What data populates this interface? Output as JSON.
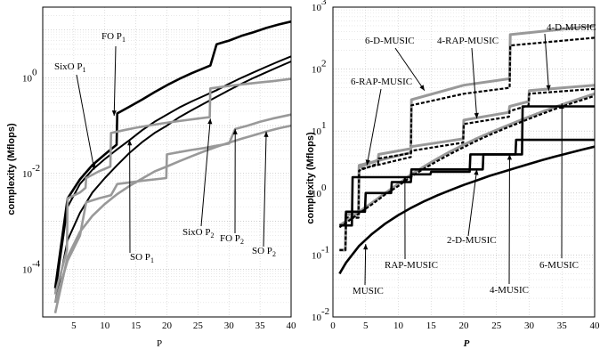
{
  "chart_data": [
    {
      "type": "line",
      "xlabel": "P",
      "ylabel": "complexity (Mflops)",
      "y_scale": "log",
      "xlim": [
        0,
        40
      ],
      "ylim": [
        1e-05,
        30
      ],
      "x_ticks": [
        "5",
        "10",
        "15",
        "20",
        "25",
        "30",
        "35",
        "40"
      ],
      "y_ticks": [
        {
          "base": "10",
          "exp": "0",
          "value": 1
        },
        {
          "base": "10",
          "exp": "-2",
          "value": 0.01
        },
        {
          "base": "10",
          "exp": "-4",
          "value": 0.0001
        }
      ],
      "grid": true,
      "annotations": [
        {
          "main": "FO P",
          "sub": "1",
          "target": "FO P1"
        },
        {
          "main": "SixO P",
          "sub": "1",
          "target": "SixO P1"
        },
        {
          "main": "SO P",
          "sub": "1",
          "target": "SO P1"
        },
        {
          "main": "SixO P",
          "sub": "2",
          "target": "SixO P2"
        },
        {
          "main": "FO P",
          "sub": "2",
          "target": "FO P2"
        },
        {
          "main": "SO P",
          "sub": "2",
          "target": "SO P2"
        }
      ],
      "series": [
        {
          "name": "FO P1",
          "color": "#000000",
          "width": 2.6,
          "x": [
            2,
            4,
            6,
            8,
            10,
            11.9,
            12,
            14,
            16,
            18,
            20,
            22,
            24,
            26,
            27,
            28,
            30,
            32,
            34,
            36,
            38,
            40
          ],
          "y": [
            4e-05,
            0.003,
            0.0075,
            0.015,
            0.025,
            0.04,
            0.18,
            0.25,
            0.35,
            0.5,
            0.7,
            0.95,
            1.25,
            1.6,
            1.8,
            5,
            6,
            7.5,
            9,
            11,
            13,
            15
          ]
        },
        {
          "name": "SixO P1",
          "color": "#000000",
          "width": 2.0,
          "x": [
            2,
            4,
            6,
            8,
            10,
            12,
            14,
            16,
            18,
            20,
            22,
            24,
            26,
            28,
            30,
            32,
            34,
            36,
            38,
            40
          ],
          "y": [
            3e-05,
            0.002,
            0.006,
            0.012,
            0.02,
            0.032,
            0.05,
            0.08,
            0.12,
            0.17,
            0.24,
            0.32,
            0.42,
            0.55,
            0.75,
            1.0,
            1.3,
            1.7,
            2.2,
            2.8
          ]
        },
        {
          "name": "SO P1",
          "color": "#000000",
          "width": 2.0,
          "x": [
            2,
            4,
            6,
            8,
            10,
            12,
            14,
            16,
            18,
            20,
            22,
            24,
            26,
            28,
            30,
            32,
            34,
            36,
            38,
            40
          ],
          "y": [
            2e-05,
            0.0004,
            0.0015,
            0.004,
            0.008,
            0.015,
            0.027,
            0.045,
            0.07,
            0.1,
            0.15,
            0.21,
            0.29,
            0.4,
            0.55,
            0.75,
            1.0,
            1.3,
            1.7,
            2.2
          ]
        },
        {
          "name": "SixO P2",
          "color": "#999999",
          "width": 2.6,
          "x": [
            2,
            3.9,
            4,
            6,
            6.9,
            7,
            9,
            10.9,
            11,
            13,
            15,
            17,
            19,
            21,
            23,
            25,
            26.9,
            27,
            29,
            31,
            33,
            35,
            37,
            40
          ],
          "y": [
            3e-05,
            0.00025,
            0.003,
            0.004,
            0.005,
            0.008,
            0.011,
            0.014,
            0.07,
            0.08,
            0.09,
            0.1,
            0.11,
            0.12,
            0.13,
            0.14,
            0.15,
            0.6,
            0.65,
            0.7,
            0.75,
            0.8,
            0.85,
            0.95
          ]
        },
        {
          "name": "FO P2",
          "color": "#999999",
          "width": 2.6,
          "x": [
            2,
            4,
            6,
            7,
            9,
            11,
            12,
            14,
            16,
            18,
            19.9,
            20,
            22,
            24,
            26,
            28,
            30,
            31,
            33,
            35,
            37,
            40
          ],
          "y": [
            2e-05,
            0.00015,
            0.0005,
            0.0025,
            0.003,
            0.0035,
            0.006,
            0.0065,
            0.007,
            0.0075,
            0.008,
            0.025,
            0.028,
            0.031,
            0.034,
            0.038,
            0.042,
            0.085,
            0.1,
            0.12,
            0.14,
            0.17
          ]
        },
        {
          "name": "SO P2",
          "color": "#999999",
          "width": 2.6,
          "x": [
            2,
            4,
            6,
            8,
            10,
            12,
            14,
            16,
            18,
            20,
            22,
            24,
            26,
            28,
            30,
            32,
            34,
            36,
            38,
            40
          ],
          "y": [
            1.2e-05,
            0.00018,
            0.0006,
            0.0013,
            0.0023,
            0.0037,
            0.0055,
            0.0078,
            0.011,
            0.014,
            0.018,
            0.023,
            0.029,
            0.036,
            0.044,
            0.053,
            0.063,
            0.075,
            0.088,
            0.1
          ]
        }
      ]
    },
    {
      "type": "line",
      "xlabel": "P",
      "ylabel": "complexity (Mflops)",
      "y_scale": "log",
      "xlim": [
        0,
        40
      ],
      "ylim": [
        0.01,
        1000
      ],
      "x_ticks": [
        "0",
        "5",
        "10",
        "15",
        "20",
        "25",
        "30",
        "35",
        "40"
      ],
      "y_ticks": [
        {
          "base": "10",
          "exp": "3",
          "value": 1000
        },
        {
          "base": "10",
          "exp": "2",
          "value": 100
        },
        {
          "base": "10",
          "exp": "1",
          "value": 10
        },
        {
          "base": "10",
          "exp": "0",
          "value": 1
        },
        {
          "base": "10",
          "exp": "-1",
          "value": 0.1
        },
        {
          "base": "10",
          "exp": "-2",
          "value": 0.01
        }
      ],
      "grid": true,
      "annotations": [
        {
          "main": "4-D-MUSIC",
          "target": "4-D-MUSIC"
        },
        {
          "main": "6-D-MUSIC",
          "target": "6-D-MUSIC"
        },
        {
          "main": "4-RAP-MUSIC",
          "target": "4-RAP-MUSIC"
        },
        {
          "main": "6-RAP-MUSIC",
          "target": "6-RAP-MUSIC"
        },
        {
          "main": "2-D-MUSIC",
          "target": "2-D-MUSIC"
        },
        {
          "main": "RAP-MUSIC",
          "target": "RAP-MUSIC"
        },
        {
          "main": "MUSIC",
          "target": "MUSIC"
        },
        {
          "main": "4-MUSIC",
          "target": "4-MUSIC"
        },
        {
          "main": "6-MUSIC",
          "target": "6-MUSIC"
        }
      ],
      "series": [
        {
          "name": "6-D-MUSIC",
          "color": "#999999",
          "width": 3.0,
          "dash": "",
          "x": [
            1,
            1.9,
            2,
            3.9,
            4,
            11.9,
            12,
            20,
            27,
            27.1,
            40
          ],
          "y": [
            0.12,
            0.12,
            0.45,
            0.45,
            2.8,
            4.5,
            32,
            55,
            70,
            360,
            500
          ]
        },
        {
          "name": "4-D-MUSIC",
          "color": "#000000",
          "width": 2.2,
          "dash": "4,2",
          "x": [
            1,
            1.9,
            2,
            3.9,
            4,
            11.9,
            12,
            20,
            27,
            27.1,
            40
          ],
          "y": [
            0.12,
            0.12,
            0.4,
            0.4,
            2.4,
            3.8,
            26,
            40,
            50,
            240,
            320
          ]
        },
        {
          "name": "6-RAP-MUSIC",
          "color": "#999999",
          "width": 3.0,
          "dash": "",
          "x": [
            1,
            1.9,
            2,
            3.9,
            4,
            6.9,
            7,
            11.9,
            12,
            19.9,
            20,
            26.9,
            27,
            29.9,
            30,
            40
          ],
          "y": [
            0.12,
            0.12,
            0.45,
            0.45,
            2.6,
            3.4,
            4.2,
            5.2,
            5.6,
            7.5,
            15,
            20,
            25,
            30,
            45,
            55
          ]
        },
        {
          "name": "4-RAP-MUSIC",
          "color": "#000000",
          "width": 2.2,
          "dash": "4,2",
          "x": [
            1,
            1.9,
            2,
            3.9,
            4,
            6.9,
            7,
            11.9,
            12,
            19.9,
            20,
            26.9,
            27,
            29.9,
            30,
            40
          ],
          "y": [
            0.12,
            0.12,
            0.4,
            0.4,
            2.3,
            3.0,
            3.6,
            4.4,
            4.8,
            6.5,
            13,
            17,
            21,
            26,
            40,
            48
          ]
        },
        {
          "name": "6-MUSIC",
          "color": "#999999",
          "width": 3.0,
          "dash": "",
          "x": [
            1,
            2,
            4,
            6,
            8,
            10,
            12,
            14,
            16,
            18,
            20,
            22,
            24,
            26,
            28,
            30,
            32,
            34,
            36,
            38,
            40
          ],
          "y": [
            0.3,
            0.35,
            0.5,
            0.7,
            1.0,
            1.4,
            2.0,
            2.7,
            3.6,
            4.7,
            6.0,
            7.6,
            9.4,
            11.5,
            14,
            17,
            20.5,
            24.5,
            29,
            34,
            40
          ]
        },
        {
          "name": "4-MUSIC",
          "color": "#000000",
          "width": 2.2,
          "dash": "4,2",
          "x": [
            1,
            2,
            4,
            6,
            8,
            10,
            12,
            14,
            16,
            18,
            20,
            22,
            24,
            26,
            28,
            30,
            32,
            34,
            36,
            38,
            40
          ],
          "y": [
            0.28,
            0.33,
            0.47,
            0.66,
            0.95,
            1.3,
            1.85,
            2.5,
            3.3,
            4.3,
            5.5,
            7.0,
            8.7,
            10.7,
            13,
            15.8,
            19,
            22.8,
            27,
            31.5,
            37
          ]
        },
        {
          "name": "2-D-MUSIC",
          "color": "#000000",
          "width": 2.6,
          "dash": "",
          "x": [
            1,
            2.9,
            3,
            11.9,
            12,
            22.9,
            23,
            28.9,
            29,
            40
          ],
          "y": [
            0.3,
            0.3,
            1.8,
            1.8,
            2.4,
            2.4,
            4.2,
            4.2,
            25,
            25
          ]
        },
        {
          "name": "RAP-MUSIC",
          "color": "#000000",
          "width": 2.6,
          "dash": "",
          "x": [
            1,
            1.9,
            2,
            4.9,
            5,
            8.9,
            9,
            11.9,
            12,
            14.9,
            15,
            20.9,
            21,
            27.9,
            28,
            40
          ],
          "y": [
            0.3,
            0.3,
            0.5,
            0.5,
            1.0,
            1.0,
            1.5,
            1.5,
            2.0,
            2.0,
            2.2,
            2.2,
            4.2,
            4.2,
            7.2,
            7.2
          ]
        },
        {
          "name": "MUSIC",
          "color": "#000000",
          "width": 2.6,
          "dash": "",
          "x": [
            1,
            2,
            4,
            6,
            8,
            10,
            12,
            14,
            16,
            18,
            20,
            22,
            24,
            26,
            28,
            30,
            32,
            34,
            36,
            38,
            40
          ],
          "y": [
            0.05,
            0.075,
            0.14,
            0.22,
            0.32,
            0.44,
            0.58,
            0.74,
            0.92,
            1.12,
            1.35,
            1.6,
            1.9,
            2.2,
            2.55,
            2.95,
            3.4,
            3.9,
            4.4,
            5.0,
            5.6
          ]
        }
      ]
    }
  ]
}
